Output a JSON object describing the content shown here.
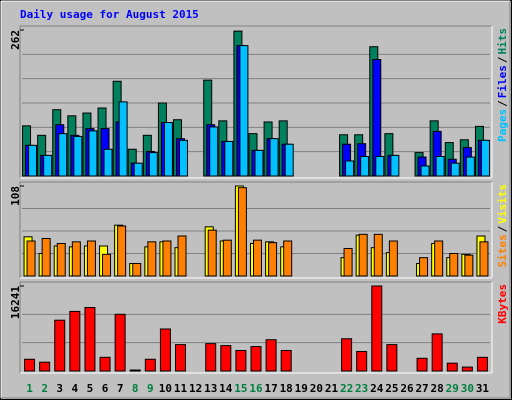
{
  "chart_data": [
    {
      "type": "bar",
      "title": "Daily usage for August 2015",
      "title_color": "#0000ff",
      "ylim": [
        0,
        262
      ],
      "yticks": [
        262
      ],
      "legend_separator": "/",
      "series": [
        {
          "name": "Hits",
          "color": "#00805c",
          "values": [
            90,
            73,
            119,
            108,
            113,
            122,
            170,
            48,
            73,
            131,
            101,
            0,
            172,
            99,
            260,
            76,
            97,
            99,
            0,
            0,
            0,
            74,
            74,
            232,
            76,
            0,
            42,
            99,
            60,
            65,
            89
          ]
        },
        {
          "name": "Files",
          "color": "#0000ff",
          "values": [
            55,
            37,
            92,
            73,
            85,
            85,
            97,
            23,
            44,
            96,
            67,
            0,
            92,
            62,
            234,
            46,
            67,
            57,
            0,
            0,
            0,
            57,
            58,
            209,
            37,
            0,
            34,
            80,
            30,
            51,
            64
          ]
        },
        {
          "name": "Pages",
          "color": "#00c0ff",
          "values": [
            55,
            37,
            76,
            71,
            81,
            48,
            133,
            23,
            42,
            96,
            64,
            0,
            88,
            62,
            234,
            46,
            67,
            57,
            0,
            0,
            0,
            27,
            35,
            35,
            37,
            0,
            18,
            35,
            23,
            34,
            64
          ]
        }
      ]
    },
    {
      "type": "bar",
      "ylim": [
        0,
        108
      ],
      "yticks": [
        108
      ],
      "legend_separator": "/",
      "series": [
        {
          "name": "Visits",
          "color": "#ffff00",
          "values": [
            47,
            27,
            36,
            35,
            36,
            36,
            61,
            15,
            35,
            41,
            34,
            0,
            59,
            42,
            108,
            39,
            41,
            35,
            0,
            0,
            0,
            22,
            49,
            34,
            28,
            0,
            15,
            39,
            22,
            26,
            48
          ]
        },
        {
          "name": "Sites",
          "color": "#ff8000",
          "values": [
            42,
            45,
            39,
            41,
            42,
            26,
            60,
            15,
            41,
            42,
            48,
            0,
            55,
            43,
            106,
            43,
            40,
            42,
            0,
            0,
            0,
            33,
            50,
            50,
            42,
            0,
            22,
            42,
            27,
            25,
            41
          ]
        }
      ]
    },
    {
      "type": "bar",
      "ylim": [
        0,
        16241
      ],
      "yticks": [
        16241
      ],
      "categories": [
        "1",
        "2",
        "3",
        "4",
        "5",
        "6",
        "7",
        "8",
        "9",
        "10",
        "11",
        "12",
        "13",
        "14",
        "15",
        "16",
        "17",
        "18",
        "19",
        "20",
        "21",
        "22",
        "23",
        "24",
        "25",
        "26",
        "27",
        "28",
        "29",
        "30",
        "31"
      ],
      "category_colors": [
        "#008040",
        "#008040",
        "#000000",
        "#000000",
        "#000000",
        "#000000",
        "#000000",
        "#008040",
        "#008040",
        "#000000",
        "#000000",
        "#000000",
        "#000000",
        "#000000",
        "#008040",
        "#008040",
        "#000000",
        "#000000",
        "#000000",
        "#000000",
        "#000000",
        "#008040",
        "#008040",
        "#000000",
        "#000000",
        "#000000",
        "#000000",
        "#000000",
        "#008040",
        "#008040",
        "#000000"
      ],
      "series": [
        {
          "name": "KBytes",
          "color": "#ff0000",
          "values": [
            2240,
            1680,
            9707,
            11388,
            12134,
            2614,
            10827,
            186,
            2240,
            8027,
            5040,
            0,
            5227,
            4854,
            3920,
            4667,
            5974,
            3920,
            0,
            0,
            0,
            6160,
            3734,
            16241,
            5040,
            0,
            2427,
            7094,
            1493,
            747,
            2614
          ]
        }
      ]
    }
  ]
}
